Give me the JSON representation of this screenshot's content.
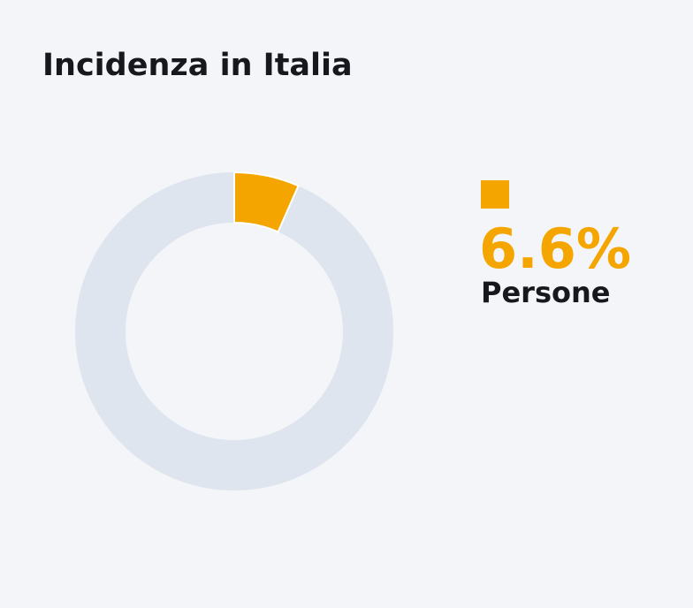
{
  "chart_data": {
    "type": "pie",
    "title": "Incidenza in Italia",
    "categories": [
      "Persone"
    ],
    "values": [
      6.6
    ],
    "value_labels": [
      "6.6%"
    ],
    "color": "#f5a500",
    "donut": true
  }
}
